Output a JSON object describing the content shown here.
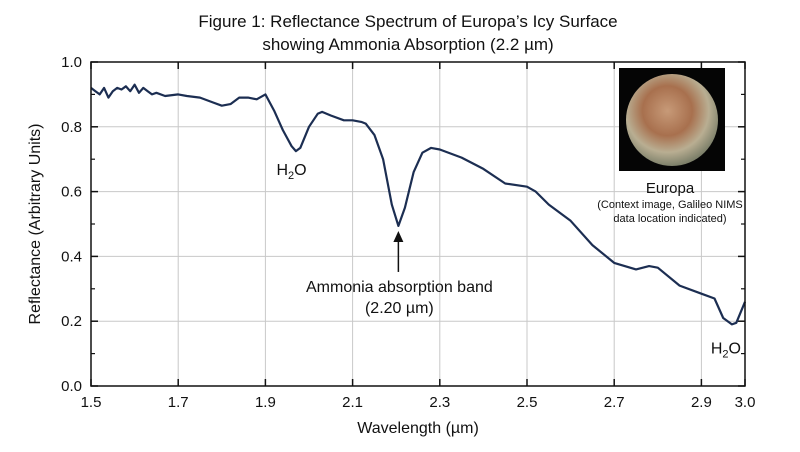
{
  "chart_data": {
    "type": "line",
    "title": "Figure 1: Reflectance Spectrum of Europa’s Icy Surface",
    "subtitle": "showing Ammonia Absorption (2.2 µm)",
    "xlabel": "Wavelength (µm)",
    "ylabel": "Reflectance (Arbitrary Units)",
    "xlim": [
      1.5,
      3.0
    ],
    "ylim": [
      0.0,
      1.0
    ],
    "x_ticks": [
      "1.5",
      "1.7",
      "1.9",
      "2.1",
      "2.3",
      "2.5",
      "2.7",
      "2.9",
      "3.0"
    ],
    "y_ticks": [
      "0.0",
      "0.2",
      "0.4",
      "0.6",
      "0.8",
      "1.0"
    ],
    "grid": true,
    "line_color": "#1c2e52",
    "series": [
      {
        "x": [
          1.5,
          1.51,
          1.52,
          1.53,
          1.54,
          1.55,
          1.56,
          1.57,
          1.58,
          1.59,
          1.6,
          1.61,
          1.62,
          1.63,
          1.64,
          1.65,
          1.67,
          1.7,
          1.72,
          1.75,
          1.78,
          1.8,
          1.82,
          1.84,
          1.86,
          1.88,
          1.9,
          1.92,
          1.94,
          1.96,
          1.97,
          1.98,
          2.0,
          2.02,
          2.03,
          2.05,
          2.08,
          2.1,
          2.12,
          2.13,
          2.15,
          2.17,
          2.19,
          2.205,
          2.22,
          2.24,
          2.26,
          2.28,
          2.3,
          2.35,
          2.4,
          2.45,
          2.5,
          2.52,
          2.55,
          2.6,
          2.65,
          2.7,
          2.75,
          2.78,
          2.8,
          2.85,
          2.9,
          2.93,
          2.95,
          2.97,
          2.98,
          3.0
        ],
        "y": [
          0.92,
          0.91,
          0.9,
          0.92,
          0.89,
          0.91,
          0.92,
          0.915,
          0.925,
          0.91,
          0.93,
          0.905,
          0.92,
          0.91,
          0.9,
          0.905,
          0.895,
          0.9,
          0.895,
          0.89,
          0.875,
          0.865,
          0.87,
          0.89,
          0.89,
          0.885,
          0.9,
          0.85,
          0.79,
          0.74,
          0.725,
          0.735,
          0.8,
          0.84,
          0.846,
          0.835,
          0.82,
          0.82,
          0.815,
          0.81,
          0.775,
          0.7,
          0.56,
          0.494,
          0.55,
          0.66,
          0.72,
          0.735,
          0.73,
          0.705,
          0.67,
          0.625,
          0.615,
          0.6,
          0.56,
          0.51,
          0.435,
          0.38,
          0.36,
          0.37,
          0.365,
          0.31,
          0.285,
          0.27,
          0.21,
          0.19,
          0.195,
          0.26
        ]
      }
    ],
    "annotations": [
      {
        "text_main": "H",
        "sub": "2",
        "text_end": "O",
        "x": 1.96,
        "y": 0.725
      },
      {
        "text": "Ammonia absorption band",
        "text2": "(2.20 µm)",
        "x": 2.205,
        "y": 0.494
      },
      {
        "text_main": "H",
        "sub": "2",
        "text_end": "O",
        "x": 2.97,
        "y": 0.19
      }
    ],
    "inset": {
      "title": "Europa",
      "caption_line1": "(Context image, Galileo NIMS",
      "caption_line2": "data location indicated)"
    }
  }
}
